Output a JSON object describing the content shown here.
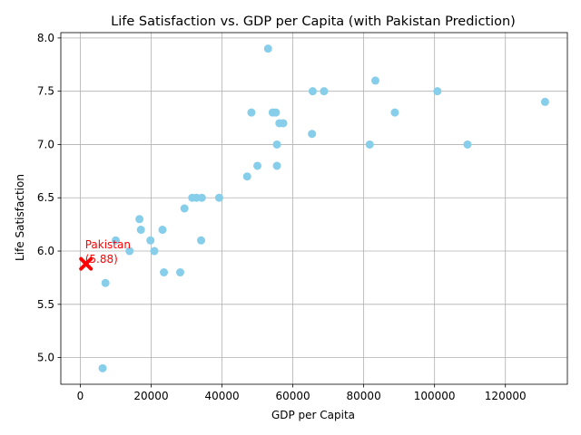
{
  "chart_data": {
    "type": "scatter",
    "title": "Life Satisfaction vs. GDP per Capita (with Pakistan Prediction)",
    "xlabel": "GDP per Capita",
    "ylabel": "Life Satisfaction",
    "xlim": [
      -5500,
      137500
    ],
    "ylim": [
      4.75,
      8.05
    ],
    "xticks": [
      0,
      20000,
      40000,
      60000,
      80000,
      100000,
      120000
    ],
    "yticks": [
      5.0,
      5.5,
      6.0,
      6.5,
      7.0,
      7.5,
      8.0
    ],
    "xtick_labels": [
      "0",
      "20000",
      "40000",
      "60000",
      "80000",
      "100000",
      "120000"
    ],
    "ytick_labels": [
      "5.0",
      "5.5",
      "6.0",
      "6.5",
      "7.0",
      "7.5",
      "8.0"
    ],
    "grid": true,
    "point_color": "#87ceeb",
    "points": [
      {
        "x": 53000,
        "y": 7.9
      },
      {
        "x": 83300,
        "y": 7.6
      },
      {
        "x": 65600,
        "y": 7.5
      },
      {
        "x": 68800,
        "y": 7.5
      },
      {
        "x": 100800,
        "y": 7.5
      },
      {
        "x": 131200,
        "y": 7.4
      },
      {
        "x": 48300,
        "y": 7.3
      },
      {
        "x": 54300,
        "y": 7.3
      },
      {
        "x": 55200,
        "y": 7.3
      },
      {
        "x": 88800,
        "y": 7.3
      },
      {
        "x": 56200,
        "y": 7.2
      },
      {
        "x": 57300,
        "y": 7.2
      },
      {
        "x": 65400,
        "y": 7.1
      },
      {
        "x": 55500,
        "y": 7.0
      },
      {
        "x": 81700,
        "y": 7.0
      },
      {
        "x": 109300,
        "y": 7.0
      },
      {
        "x": 50000,
        "y": 6.8
      },
      {
        "x": 55500,
        "y": 6.8
      },
      {
        "x": 47100,
        "y": 6.7
      },
      {
        "x": 31600,
        "y": 6.5
      },
      {
        "x": 32800,
        "y": 6.5
      },
      {
        "x": 34300,
        "y": 6.5
      },
      {
        "x": 39200,
        "y": 6.5
      },
      {
        "x": 29400,
        "y": 6.4
      },
      {
        "x": 16700,
        "y": 6.3
      },
      {
        "x": 17100,
        "y": 6.2
      },
      {
        "x": 23200,
        "y": 6.2
      },
      {
        "x": 10000,
        "y": 6.1
      },
      {
        "x": 19800,
        "y": 6.1
      },
      {
        "x": 34100,
        "y": 6.1
      },
      {
        "x": 13900,
        "y": 6.0
      },
      {
        "x": 20900,
        "y": 6.0
      },
      {
        "x": 23600,
        "y": 5.8
      },
      {
        "x": 28200,
        "y": 5.8
      },
      {
        "x": 7100,
        "y": 5.7
      },
      {
        "x": 6300,
        "y": 4.9
      }
    ],
    "prediction": {
      "x": 1600,
      "y": 5.88,
      "color": "#ff0000",
      "label": "Pakistan\n(5.88)"
    }
  }
}
